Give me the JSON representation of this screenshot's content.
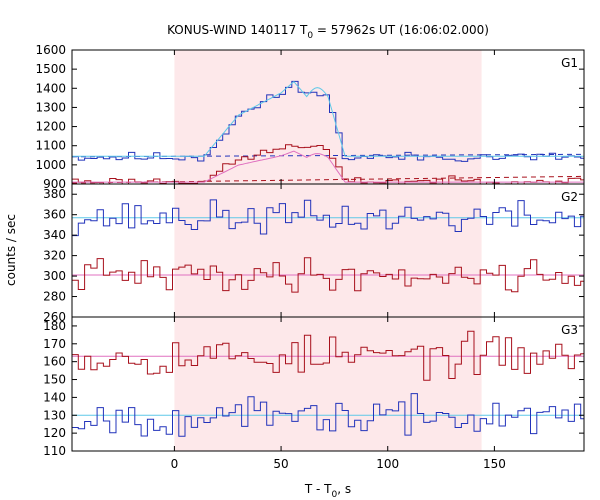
{
  "chart_data": {
    "type": "line",
    "title": "KONUS-WIND 140117 T",
    "title_sub": "0",
    "title_rest": " = 57962s UT (16:06:02.000)",
    "xlabel": "T - T",
    "xlabel_sub": "0",
    "xlabel_rest": ", s",
    "ylabel": "counts / sec",
    "xlim": [
      -48.0,
      192.0
    ],
    "x_ticks": [
      0,
      50,
      100,
      150
    ],
    "highlight_interval": [
      0,
      144
    ],
    "bin_width": 2.944,
    "colors": {
      "blue": "#2233bb",
      "cyan": "#5ec8e8",
      "red": "#a8101c",
      "pink": "#e070c0",
      "shade": "#fde8ea"
    },
    "panels": [
      {
        "name": "G1",
        "ylim": [
          900,
          1600
        ],
        "y_ticks": [
          900,
          1000,
          1100,
          1200,
          1300,
          1400,
          1500,
          1600
        ],
        "series": [
          {
            "color": "blue",
            "bg": 1040,
            "peak_t": 60,
            "amp": 390,
            "noise": 18,
            "seed": 11
          },
          {
            "color": "red",
            "bg": 915,
            "peak_t": 55,
            "amp": 200,
            "noise": 14,
            "seed": 23
          }
        ],
        "background_lines": [
          {
            "color": "blue",
            "y0": 1042,
            "y1": 1055
          },
          {
            "color": "red",
            "y0": 905,
            "y1": 940
          }
        ],
        "fit_curves": [
          {
            "color": "cyan",
            "bg": 1045,
            "amp": 410
          },
          {
            "color": "pink",
            "bg": 910,
            "amp": 170
          }
        ]
      },
      {
        "name": "G2",
        "ylim": [
          260,
          390
        ],
        "y_ticks": [
          260,
          280,
          300,
          320,
          340,
          360,
          380
        ],
        "series": [
          {
            "color": "blue",
            "bg": 357,
            "peak_t": 0,
            "amp": 0,
            "noise": 11,
            "seed": 37
          },
          {
            "color": "red",
            "bg": 301,
            "peak_t": 0,
            "amp": 0,
            "noise": 11,
            "seed": 41
          }
        ],
        "flat_lines": [
          {
            "color": "cyan",
            "y": 357
          },
          {
            "color": "pink",
            "y": 301
          }
        ]
      },
      {
        "name": "G3",
        "ylim": [
          110,
          185
        ],
        "y_ticks": [
          110,
          120,
          130,
          140,
          150,
          160,
          170,
          180
        ],
        "series": [
          {
            "color": "red",
            "bg": 163,
            "peak_t": 0,
            "amp": 0,
            "noise": 8,
            "seed": 53
          },
          {
            "color": "blue",
            "bg": 129,
            "peak_t": 0,
            "amp": 0,
            "noise": 7,
            "seed": 67
          }
        ],
        "flat_lines": [
          {
            "color": "pink",
            "y": 163
          },
          {
            "color": "cyan",
            "y": 130
          }
        ]
      }
    ]
  }
}
